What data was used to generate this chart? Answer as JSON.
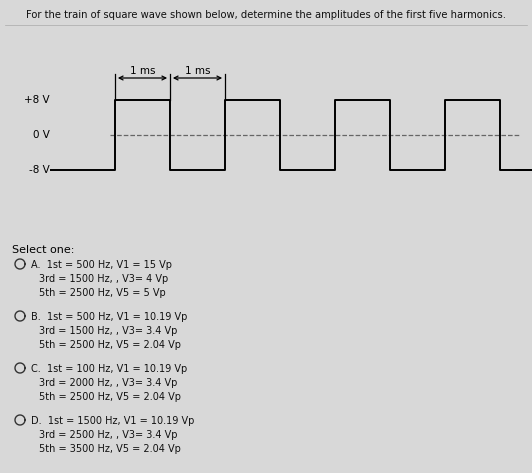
{
  "title": "For the train of square wave shown below, determine the amplitudes of the first five harmonics.",
  "bg_color": "#d8d8d8",
  "wave_color": "#000000",
  "dashed_color": "#666666",
  "label_plus8": "+8 V",
  "label_0": "0 V",
  "label_minus8": "-8 V",
  "ms_label1": "1 ms",
  "ms_label2": "1 ms",
  "select_one": "Select one:",
  "options": [
    {
      "letter": "A.",
      "lines": [
        "1st = 500 Hz, V1 = 15 Vp",
        "3rd = 1500 Hz, , V3= 4 Vp",
        "5th = 2500 Hz, V5 = 5 Vp"
      ]
    },
    {
      "letter": "B.",
      "lines": [
        "1st = 500 Hz, V1 = 10.19 Vp",
        "3rd = 1500 Hz, , V3= 3.4 Vp",
        "5th = 2500 Hz, V5 = 2.04 Vp"
      ]
    },
    {
      "letter": "C.",
      "lines": [
        "1st = 100 Hz, V1 = 10.19 Vp",
        "3rd = 2000 Hz, , V3= 3.4 Vp",
        "5th = 2500 Hz, V5 = 2.04 Vp"
      ]
    },
    {
      "letter": "D.",
      "lines": [
        "1st = 1500 Hz, V1 = 10.19 Vp",
        "3rd = 2500 Hz, , V3= 3.4 Vp",
        "5th = 3500 Hz, V5 = 2.04 Vp"
      ]
    }
  ]
}
